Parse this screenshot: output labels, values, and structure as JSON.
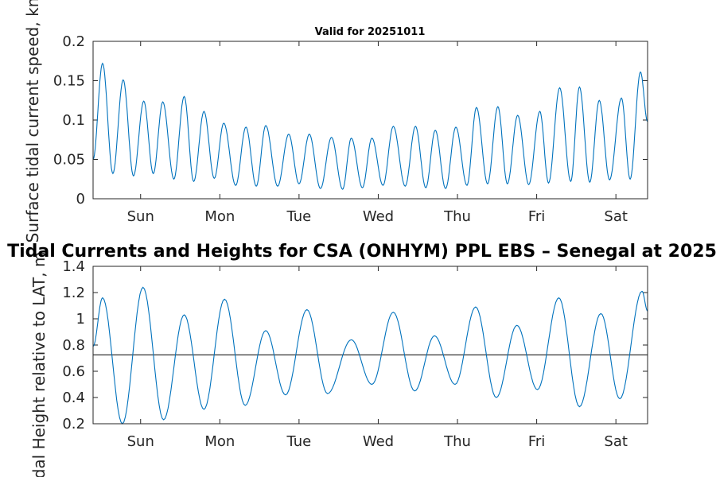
{
  "figure_title": "Tidal Currents and Heights for CSA (ONHYM) PPL EBS  – Senegal at 2025",
  "chart_data": [
    {
      "type": "line",
      "title": "Valid for 20251011",
      "xlabel": "",
      "ylabel": "Surface tidal current speed, kn",
      "xlim": [
        0,
        7.0
      ],
      "ylim": [
        0,
        0.2
      ],
      "yticks": [
        0,
        0.05,
        0.1,
        0.15,
        0.2
      ],
      "ytick_labels": [
        "0",
        "0.05",
        "0.1",
        "0.15",
        "0.2"
      ],
      "xticks": [
        0.6,
        1.6,
        2.6,
        3.6,
        4.6,
        5.6,
        6.6
      ],
      "xtick_labels": [
        "Sun",
        "Mon",
        "Tue",
        "Wed",
        "Thu",
        "Fri",
        "Sat"
      ],
      "line_color": "#0072BD",
      "series": [
        {
          "name": "current speed",
          "peaks_x": [
            0.12,
            0.38,
            0.64,
            0.88,
            1.15,
            1.4,
            1.65,
            1.93,
            2.18,
            2.47,
            2.73,
            3.01,
            3.26,
            3.52,
            3.79,
            4.07,
            4.32,
            4.58,
            4.84,
            5.11,
            5.36,
            5.64,
            5.89,
            6.14,
            6.39,
            6.67,
            6.91
          ],
          "peaks_y": [
            0.172,
            0.151,
            0.124,
            0.123,
            0.13,
            0.111,
            0.096,
            0.091,
            0.093,
            0.082,
            0.082,
            0.078,
            0.077,
            0.077,
            0.092,
            0.092,
            0.087,
            0.091,
            0.116,
            0.117,
            0.106,
            0.111,
            0.141,
            0.142,
            0.125,
            0.128,
            0.161
          ],
          "troughs_x": [
            0.0,
            0.25,
            0.51,
            0.76,
            1.02,
            1.27,
            1.53,
            1.8,
            2.06,
            2.33,
            2.6,
            2.87,
            3.15,
            3.4,
            3.66,
            3.94,
            4.2,
            4.45,
            4.72,
            4.98,
            5.23,
            5.5,
            5.75,
            6.03,
            6.27,
            6.52,
            6.78,
            7.0
          ],
          "troughs_y": [
            0.05,
            0.032,
            0.029,
            0.032,
            0.025,
            0.022,
            0.026,
            0.017,
            0.016,
            0.016,
            0.019,
            0.013,
            0.012,
            0.014,
            0.017,
            0.016,
            0.014,
            0.013,
            0.017,
            0.019,
            0.019,
            0.018,
            0.02,
            0.022,
            0.021,
            0.024,
            0.025,
            0.098
          ]
        }
      ]
    },
    {
      "type": "line",
      "title": "",
      "xlabel": "",
      "ylabel": "Tidal Height relative to LAT, m",
      "xlim": [
        0,
        7.0
      ],
      "ylim": [
        0.2,
        1.4
      ],
      "yticks": [
        0.2,
        0.4,
        0.6,
        0.8,
        1.0,
        1.2,
        1.4
      ],
      "ytick_labels": [
        "0.2",
        "0.4",
        "0.6",
        "0.8",
        "1",
        "1.2",
        "1.4"
      ],
      "xticks": [
        0.6,
        1.6,
        2.6,
        3.6,
        4.6,
        5.6,
        6.6
      ],
      "xtick_labels": [
        "Sun",
        "Mon",
        "Tue",
        "Wed",
        "Thu",
        "Fri",
        "Sat"
      ],
      "line_color": "#0072BD",
      "reference_line": {
        "name": "mean level",
        "y": 0.725,
        "color": "#000000"
      },
      "series": [
        {
          "name": "tidal height",
          "extremes_x": [
            0.0,
            0.12,
            0.37,
            0.63,
            0.89,
            1.15,
            1.4,
            1.66,
            1.92,
            2.18,
            2.43,
            2.7,
            2.96,
            3.26,
            3.52,
            3.79,
            4.06,
            4.31,
            4.57,
            4.83,
            5.09,
            5.35,
            5.61,
            5.88,
            6.14,
            6.41,
            6.65,
            6.93,
            7.0
          ],
          "extremes_y": [
            0.79,
            1.16,
            0.2,
            1.24,
            0.23,
            1.03,
            0.31,
            1.15,
            0.34,
            0.91,
            0.42,
            1.07,
            0.43,
            0.84,
            0.5,
            1.05,
            0.45,
            0.87,
            0.5,
            1.09,
            0.4,
            0.95,
            0.46,
            1.16,
            0.33,
            1.04,
            0.39,
            1.21,
            1.06
          ]
        }
      ]
    }
  ]
}
